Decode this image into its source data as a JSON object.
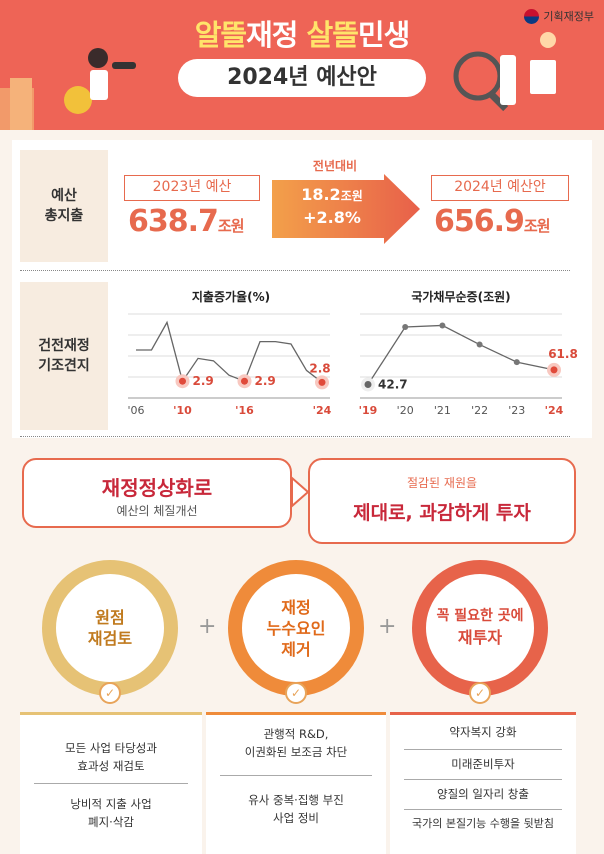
{
  "header": {
    "ministry": "기획재정부",
    "title_a": "알뜰",
    "title_b": "재정 ",
    "title_c": "살뜰",
    "title_d": "민생",
    "subtitle": "2024년 예산안"
  },
  "budget": {
    "label_l1": "예산",
    "label_l2": "총지출",
    "prev_label": "2023년 예산",
    "prev_value": "638.7",
    "unit": "조원",
    "arrow_title": "전년대비",
    "change_value": "18.2",
    "change_unit": "조원",
    "change_pct": "+2.8%",
    "next_label": "2024년 예산안",
    "next_value": "656.9"
  },
  "fiscal": {
    "label_l1": "건전재정",
    "label_l2": "기조견지"
  },
  "chart_data": [
    {
      "type": "line",
      "title": "지출증가율(%)",
      "x_ticks": [
        "'06",
        "'10",
        "'16",
        "'24"
      ],
      "values": [
        5.5,
        5.5,
        7.8,
        2.9,
        4.8,
        4.6,
        3.4,
        2.9,
        6.2,
        6.2,
        6.0,
        3.8,
        2.8
      ],
      "annotations": [
        {
          "x": "'10",
          "label": "2.9"
        },
        {
          "x": "'16",
          "label": "2.9"
        },
        {
          "x": "'24",
          "label": "2.8"
        }
      ]
    },
    {
      "type": "line",
      "title": "국가채무순증(조원)",
      "x_ticks": [
        "'19",
        "'20",
        "'21",
        "'22",
        "'23",
        "'24"
      ],
      "values": [
        42.7,
        118,
        120,
        95,
        72,
        61.8
      ],
      "annotations": [
        {
          "x": "'19",
          "label": "42.7"
        },
        {
          "x": "'24",
          "label": "61.8"
        }
      ]
    }
  ],
  "bubbles": {
    "left_title": "재정정상화로",
    "left_sub": "예산의 체질개선",
    "right_sub": "절감된 재원을",
    "right_title": "제대로, 과감하게 투자"
  },
  "circles": [
    {
      "l1": "원점",
      "l2": "재검토",
      "l3": ""
    },
    {
      "l1": "재정",
      "l2": "누수요인",
      "l3": "제거"
    },
    {
      "l1": "꼭 필요한 곳에",
      "l2": "재투자",
      "l3": ""
    }
  ],
  "columns": [
    {
      "items": [
        [
          "모든 사업 타당성과",
          "효과성 재검토"
        ],
        [
          "낭비적 지출 사업",
          "폐지·삭감"
        ]
      ]
    },
    {
      "items": [
        [
          "관행적 R&D,",
          "이권화된 보조금 차단"
        ],
        [
          "유사 중복·집행 부진",
          "사업 정비"
        ]
      ]
    },
    {
      "items": [
        [
          "약자복지 강화",
          ""
        ],
        [
          "미래준비투자",
          ""
        ],
        [
          "양질의 일자리 창출",
          ""
        ],
        [
          "국가의 본질기능 수행을 뒷받침",
          ""
        ]
      ]
    }
  ],
  "colors": {
    "accent": "#e76a4e",
    "banner": "#ee6456",
    "yellow": "#ffe46a",
    "orange": "#ef8b3a",
    "tan": "#e6c275"
  },
  "icons": [
    "ministry-logo-icon",
    "check-icon",
    "plus-icon",
    "arrow-icon"
  ]
}
